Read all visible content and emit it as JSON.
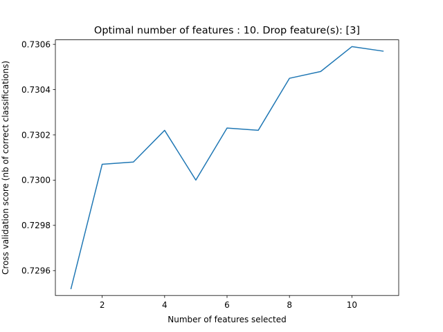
{
  "chart_data": {
    "type": "line",
    "title": "Optimal number of features : 10. Drop feature(s): [3]",
    "xlabel": "Number of features selected",
    "ylabel": "Cross validation score (nb of correct classifications)",
    "x": [
      1,
      2,
      3,
      4,
      5,
      6,
      7,
      8,
      9,
      10,
      11
    ],
    "series": [
      {
        "values": [
          0.72952,
          0.73007,
          0.73008,
          0.73022,
          0.73,
          0.73023,
          0.73022,
          0.73045,
          0.73048,
          0.73059,
          0.73057
        ],
        "color": "#1f77b4"
      }
    ],
    "xlim": [
      0.5,
      11.5
    ],
    "ylim": [
      0.72949,
      0.73062
    ],
    "xticks": [
      2,
      4,
      6,
      8,
      10
    ],
    "yticks": [
      0.7296,
      0.7298,
      0.73,
      0.7302,
      0.7304,
      0.7306
    ],
    "ytick_labels": [
      "0.7296",
      "0.7298",
      "0.7300",
      "0.7302",
      "0.7304",
      "0.7306"
    ],
    "grid": false,
    "legend": "none"
  }
}
